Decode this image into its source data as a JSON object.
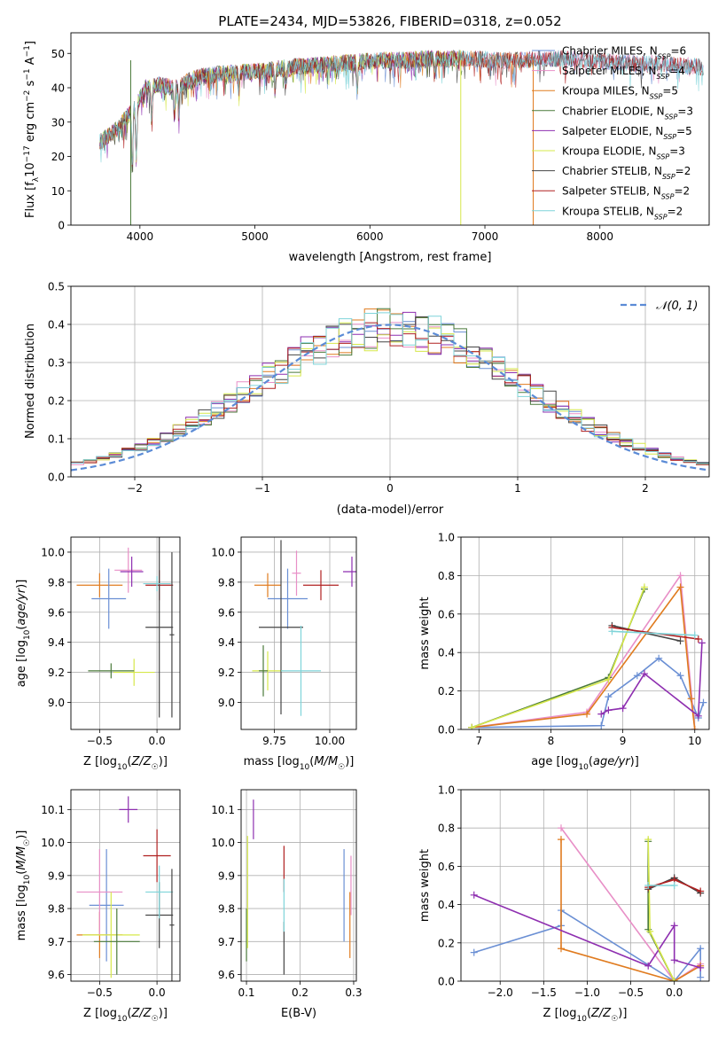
{
  "title": "PLATE=2434, MJD=53826, FIBERID=0318, z=0.052",
  "colors": {
    "chabrier_miles": "#6a8fd4",
    "salpeter_miles": "#e88fc7",
    "kroupa_miles": "#e07b1f",
    "chabrier_elodie": "#4a7a3a",
    "salpeter_elodie": "#8e2fb0",
    "kroupa_elodie": "#d6e84a",
    "chabrier_stelib": "#454545",
    "salpeter_stelib": "#b02020",
    "kroupa_stelib": "#7fd4d9",
    "normal": "#5b8bd6"
  },
  "chart_data": [
    {
      "id": "spectrum",
      "type": "line",
      "xlabel": "wavelength [Angstrom, rest frame]",
      "ylabel": "Flux [f_λ 10^-17 erg cm^-2 s^-1 A^-1]",
      "xlim": [
        3400,
        8950
      ],
      "ylim": [
        0,
        56
      ],
      "xticks": [
        4000,
        5000,
        6000,
        7000,
        8000
      ],
      "yticks": [
        0,
        10,
        20,
        30,
        40,
        50
      ],
      "grid": false,
      "legend_position": "right",
      "legend": [
        {
          "key": "chabrier_miles",
          "text": "Chabrier MILES, N",
          "sub": "SSP",
          "val": "=6"
        },
        {
          "key": "salpeter_miles",
          "text": "Salpeter MILES, N",
          "sub": "SSP",
          "val": "=4"
        },
        {
          "key": "kroupa_miles",
          "text": "Kroupa MILES, N",
          "sub": "SSP",
          "val": "=5"
        },
        {
          "key": "chabrier_elodie",
          "text": "Chabrier ELODIE, N",
          "sub": "SSP",
          "val": "=3"
        },
        {
          "key": "salpeter_elodie",
          "text": "Salpeter ELODIE, N",
          "sub": "SSP",
          "val": "=5"
        },
        {
          "key": "kroupa_elodie",
          "text": "Kroupa ELODIE, N",
          "sub": "SSP",
          "val": "=3"
        },
        {
          "key": "chabrier_stelib",
          "text": "Chabrier STELIB, N",
          "sub": "SSP",
          "val": "=2"
        },
        {
          "key": "salpeter_stelib",
          "text": "Salpeter STELIB, N",
          "sub": "SSP",
          "val": "=2"
        },
        {
          "key": "kroupa_stelib",
          "text": "Kroupa STELIB, N",
          "sub": "SSP",
          "val": "=2"
        }
      ],
      "continuum": [
        [
          3650,
          24
        ],
        [
          3800,
          28
        ],
        [
          3950,
          34
        ],
        [
          4050,
          40
        ],
        [
          4150,
          41
        ],
        [
          4300,
          40
        ],
        [
          4500,
          43
        ],
        [
          4700,
          44
        ],
        [
          4900,
          44.5
        ],
        [
          5100,
          45
        ],
        [
          5300,
          46
        ],
        [
          5500,
          46.5
        ],
        [
          5700,
          47
        ],
        [
          5900,
          47.5
        ],
        [
          6100,
          48
        ],
        [
          6300,
          48
        ],
        [
          6500,
          48.5
        ],
        [
          6700,
          48.5
        ],
        [
          6900,
          48.5
        ],
        [
          7100,
          48
        ],
        [
          7300,
          48
        ],
        [
          7500,
          48.5
        ],
        [
          7700,
          48.5
        ],
        [
          7900,
          48
        ],
        [
          8100,
          47.5
        ],
        [
          8300,
          47
        ],
        [
          8500,
          47
        ],
        [
          8700,
          46.5
        ],
        [
          8900,
          46
        ]
      ],
      "absorption": [
        [
          3934,
          17
        ],
        [
          3969,
          16
        ],
        [
          4102,
          10
        ],
        [
          4300,
          9
        ],
        [
          4340,
          8
        ],
        [
          4861,
          5
        ],
        [
          5175,
          6
        ],
        [
          5270,
          4
        ],
        [
          5890,
          9
        ],
        [
          6563,
          4
        ]
      ],
      "drops": [
        {
          "key": "chabrier_elodie",
          "x": 3920
        },
        {
          "key": "kroupa_elodie",
          "x": 6790
        },
        {
          "key": "kroupa_miles",
          "x": 7420
        }
      ]
    },
    {
      "id": "residuals",
      "type": "histogram",
      "xlabel": "(data-model)/error",
      "ylabel": "Normed distribution",
      "xlim": [
        -2.5,
        2.5
      ],
      "ylim": [
        0,
        0.5
      ],
      "xticks": [
        -2,
        -1,
        0,
        1,
        2
      ],
      "yticks": [
        0.0,
        0.1,
        0.2,
        0.3,
        0.4,
        0.5
      ],
      "grid": true,
      "legend_position": "top-right",
      "normal_label": "𝒩(0, 1)",
      "bin_width": 0.1
    },
    {
      "id": "z_age",
      "type": "errorbar",
      "xlabel": "Z [log10(Z/Z☉)]",
      "ylabel": "age  [log10(age/yr)]",
      "xlim": [
        -0.75,
        0.2
      ],
      "ylim": [
        8.82,
        10.1
      ],
      "xticks": [
        -0.5,
        0.0
      ],
      "yticks": [
        9.0,
        9.2,
        9.4,
        9.6,
        9.8,
        10.0
      ],
      "grid": true,
      "points": [
        {
          "key": "kroupa_miles",
          "x": -0.5,
          "xerr": 0.2,
          "y": 9.78,
          "yerr": 0.08
        },
        {
          "key": "chabrier_miles",
          "x": -0.42,
          "xerr": 0.15,
          "y": 9.69,
          "yerr": 0.2
        },
        {
          "key": "salpeter_miles",
          "x": -0.25,
          "xerr": 0.12,
          "y": 9.88,
          "yerr": 0.15
        },
        {
          "key": "salpeter_elodie",
          "x": -0.22,
          "xerr": 0.1,
          "y": 9.87,
          "yerr": 0.1
        },
        {
          "key": "kroupa_elodie",
          "x": -0.2,
          "xerr": 0.18,
          "y": 9.2,
          "yerr": 0.09
        },
        {
          "key": "chabrier_elodie",
          "x": -0.4,
          "xerr": 0.2,
          "y": 9.21,
          "yerr": 0.05
        },
        {
          "key": "salpeter_stelib",
          "x": 0.02,
          "xerr": 0.12,
          "y": 9.78,
          "yerr": 0.1
        },
        {
          "key": "chabrier_stelib",
          "x": 0.02,
          "xerr": 0.12,
          "y": 9.5,
          "yerr": 0.6
        },
        {
          "key": "kroupa_stelib",
          "x": 0.0,
          "xerr": 0.12,
          "y": 9.79,
          "yerr": 0.05
        },
        {
          "key": "chabrier_stelib",
          "x": 0.13,
          "xerr": 0.02,
          "y": 9.45,
          "yerr": 0.55
        }
      ]
    },
    {
      "id": "mass_age",
      "type": "errorbar",
      "xlabel": "mass [log10(M/M☉)]",
      "ylabel": "",
      "xlim": [
        9.6,
        10.12
      ],
      "ylim": [
        8.82,
        10.1
      ],
      "xticks": [
        9.75,
        10.0
      ],
      "yticks": [
        9.0,
        9.2,
        9.4,
        9.6,
        9.8,
        10.0
      ],
      "grid": true,
      "points": [
        {
          "key": "kroupa_miles",
          "x": 9.72,
          "xerr": 0.06,
          "y": 9.78,
          "yerr": 0.08
        },
        {
          "key": "chabrier_miles",
          "x": 9.81,
          "xerr": 0.09,
          "y": 9.69,
          "yerr": 0.2
        },
        {
          "key": "salpeter_miles",
          "x": 9.85,
          "xerr": 0.02,
          "y": 9.86,
          "yerr": 0.15
        },
        {
          "key": "salpeter_elodie",
          "x": 10.1,
          "xerr": 0.04,
          "y": 9.87,
          "yerr": 0.1
        },
        {
          "key": "kroupa_elodie",
          "x": 9.72,
          "xerr": 0.07,
          "y": 9.21,
          "yerr": 0.13
        },
        {
          "key": "chabrier_elodie",
          "x": 9.7,
          "xerr": 0.02,
          "y": 9.21,
          "yerr": 0.17
        },
        {
          "key": "salpeter_stelib",
          "x": 9.96,
          "xerr": 0.08,
          "y": 9.78,
          "yerr": 0.1
        },
        {
          "key": "chabrier_stelib",
          "x": 9.78,
          "xerr": 0.1,
          "y": 9.5,
          "yerr": 0.58
        },
        {
          "key": "kroupa_stelib",
          "x": 9.87,
          "xerr": 0.09,
          "y": 9.21,
          "yerr": 0.3
        }
      ]
    },
    {
      "id": "age_weight",
      "type": "line",
      "xlabel": "age  [log10(age/yr)]",
      "ylabel": "mass weight",
      "xlim": [
        6.75,
        10.2
      ],
      "ylim": [
        0,
        1.0
      ],
      "xticks": [
        7,
        8,
        9,
        10
      ],
      "yticks": [
        0.0,
        0.2,
        0.4,
        0.6,
        0.8,
        1.0
      ],
      "grid": true,
      "series": [
        {
          "key": "chabrier_miles",
          "points": [
            [
              6.9,
              0.01
            ],
            [
              8.7,
              0.02
            ],
            [
              8.8,
              0.17
            ],
            [
              9.2,
              0.28
            ],
            [
              9.5,
              0.37
            ],
            [
              9.8,
              0.28
            ],
            [
              10.05,
              0.06
            ],
            [
              10.12,
              0.14
            ]
          ]
        },
        {
          "key": "salpeter_miles",
          "points": [
            [
              6.9,
              0.01
            ],
            [
              8.5,
              0.09
            ],
            [
              9.8,
              0.8
            ],
            [
              10.0,
              0.0
            ]
          ]
        },
        {
          "key": "kroupa_miles",
          "points": [
            [
              6.9,
              0.01
            ],
            [
              8.5,
              0.08
            ],
            [
              9.8,
              0.74
            ],
            [
              9.95,
              0.16
            ],
            [
              10.0,
              0.0
            ]
          ]
        },
        {
          "key": "chabrier_elodie",
          "points": [
            [
              6.9,
              0.01
            ],
            [
              8.8,
              0.27
            ],
            [
              9.3,
              0.73
            ]
          ]
        },
        {
          "key": "salpeter_elodie",
          "points": [
            [
              8.7,
              0.08
            ],
            [
              8.8,
              0.1
            ],
            [
              9.0,
              0.11
            ],
            [
              9.3,
              0.29
            ],
            [
              10.05,
              0.07
            ],
            [
              10.1,
              0.45
            ]
          ]
        },
        {
          "key": "kroupa_elodie",
          "points": [
            [
              6.9,
              0.01
            ],
            [
              8.8,
              0.26
            ],
            [
              9.3,
              0.74
            ]
          ]
        },
        {
          "key": "chabrier_stelib",
          "points": [
            [
              8.85,
              0.54
            ],
            [
              9.8,
              0.46
            ]
          ]
        },
        {
          "key": "salpeter_stelib",
          "points": [
            [
              8.85,
              0.53
            ],
            [
              10.05,
              0.47
            ]
          ]
        },
        {
          "key": "kroupa_stelib",
          "points": [
            [
              8.85,
              0.51
            ],
            [
              10.0,
              0.49
            ]
          ]
        }
      ]
    },
    {
      "id": "z_mass",
      "type": "errorbar",
      "xlabel": "Z [log10(Z/Z☉)]",
      "ylabel": "mass [log10(M/M☉)]",
      "xlim": [
        -0.75,
        0.2
      ],
      "ylim": [
        9.58,
        10.16
      ],
      "xticks": [
        -0.5,
        0.0
      ],
      "yticks": [
        9.6,
        9.7,
        9.8,
        9.9,
        10.0,
        10.1
      ],
      "grid": true,
      "points": [
        {
          "key": "kroupa_miles",
          "x": -0.5,
          "xerr": 0.2,
          "y": 9.72,
          "yerr": 0.07
        },
        {
          "key": "chabrier_miles",
          "x": -0.44,
          "xerr": 0.15,
          "y": 9.81,
          "yerr": 0.17
        },
        {
          "key": "salpeter_miles",
          "x": -0.5,
          "xerr": 0.2,
          "y": 9.85,
          "yerr": 0.13
        },
        {
          "key": "salpeter_elodie",
          "x": -0.25,
          "xerr": 0.08,
          "y": 10.1,
          "yerr": 0.04
        },
        {
          "key": "kroupa_elodie",
          "x": -0.4,
          "xerr": 0.25,
          "y": 9.72,
          "yerr": 0.13
        },
        {
          "key": "chabrier_elodie",
          "x": -0.35,
          "xerr": 0.2,
          "y": 9.7,
          "yerr": 0.1
        },
        {
          "key": "salpeter_stelib",
          "x": 0.0,
          "xerr": 0.12,
          "y": 9.96,
          "yerr": 0.08
        },
        {
          "key": "chabrier_stelib",
          "x": 0.02,
          "xerr": 0.12,
          "y": 9.78,
          "yerr": 0.1
        },
        {
          "key": "kroupa_stelib",
          "x": 0.02,
          "xerr": 0.12,
          "y": 9.85,
          "yerr": 0.08
        },
        {
          "key": "chabrier_stelib",
          "x": 0.13,
          "xerr": 0.02,
          "y": 9.75,
          "yerr": 0.17
        }
      ]
    },
    {
      "id": "ebv_mass",
      "type": "errorbar",
      "xlabel": "E(B-V)",
      "ylabel": "",
      "xlim": [
        0.09,
        0.305
      ],
      "ylim": [
        9.58,
        10.16
      ],
      "xticks": [
        0.1,
        0.2,
        0.3
      ],
      "yticks": [
        9.6,
        9.7,
        9.8,
        9.9,
        10.0,
        10.1
      ],
      "grid": true,
      "points": [
        {
          "key": "chabrier_elodie",
          "x": 0.1,
          "xerr": 0,
          "y": 9.72,
          "yerr": 0.08
        },
        {
          "key": "kroupa_elodie",
          "x": 0.102,
          "xerr": 0,
          "y": 9.85,
          "yerr": 0.17
        },
        {
          "key": "salpeter_elodie",
          "x": 0.113,
          "xerr": 0,
          "y": 10.07,
          "yerr": 0.06
        },
        {
          "key": "chabrier_stelib",
          "x": 0.17,
          "xerr": 0,
          "y": 9.68,
          "yerr": 0.08
        },
        {
          "key": "salpeter_stelib",
          "x": 0.17,
          "xerr": 0,
          "y": 9.92,
          "yerr": 0.07
        },
        {
          "key": "kroupa_stelib",
          "x": 0.17,
          "xerr": 0,
          "y": 9.81,
          "yerr": 0.08
        },
        {
          "key": "chabrier_miles",
          "x": 0.282,
          "xerr": 0,
          "y": 9.84,
          "yerr": 0.14
        },
        {
          "key": "kroupa_miles",
          "x": 0.293,
          "xerr": 0,
          "y": 9.75,
          "yerr": 0.1
        },
        {
          "key": "salpeter_miles",
          "x": 0.295,
          "xerr": 0,
          "y": 9.87,
          "yerr": 0.09
        }
      ]
    },
    {
      "id": "z_weight",
      "type": "line",
      "xlabel": "Z [log10(Z/Z☉)]",
      "ylabel": "mass weight",
      "xlim": [
        -2.45,
        0.4
      ],
      "ylim": [
        0,
        1.0
      ],
      "xticks": [
        -2.0,
        -1.5,
        -1.0,
        -0.5,
        0.0
      ],
      "yticks": [
        0.0,
        0.2,
        0.4,
        0.6,
        0.8,
        1.0
      ],
      "grid": true,
      "series": [
        {
          "key": "chabrier_miles",
          "points": [
            [
              -2.3,
              0.15
            ],
            [
              -1.3,
              0.29
            ],
            [
              -1.3,
              0.37
            ],
            [
              0.0,
              0.0
            ],
            [
              0.3,
              0.17
            ],
            [
              0.3,
              0.02
            ]
          ]
        },
        {
          "key": "salpeter_miles",
          "points": [
            [
              -1.3,
              0.8
            ],
            [
              0.0,
              0.0
            ],
            [
              0.3,
              0.09
            ]
          ]
        },
        {
          "key": "kroupa_miles",
          "points": [
            [
              -1.3,
              0.74
            ],
            [
              -1.3,
              0.17
            ],
            [
              0.0,
              0.0
            ],
            [
              0.3,
              0.08
            ]
          ]
        },
        {
          "key": "chabrier_elodie",
          "points": [
            [
              -0.3,
              0.73
            ],
            [
              -0.3,
              0.27
            ],
            [
              0.0,
              0.0
            ]
          ]
        },
        {
          "key": "salpeter_elodie",
          "points": [
            [
              -2.3,
              0.45
            ],
            [
              -0.3,
              0.08
            ],
            [
              0.0,
              0.29
            ],
            [
              0.0,
              0.11
            ],
            [
              0.3,
              0.07
            ]
          ]
        },
        {
          "key": "kroupa_elodie",
          "points": [
            [
              -0.3,
              0.74
            ],
            [
              -0.28,
              0.26
            ],
            [
              0.0,
              0.0
            ]
          ]
        },
        {
          "key": "chabrier_stelib",
          "points": [
            [
              -0.3,
              0.48
            ],
            [
              0.0,
              0.54
            ],
            [
              0.3,
              0.46
            ]
          ]
        },
        {
          "key": "salpeter_stelib",
          "points": [
            [
              -0.3,
              0.49
            ],
            [
              0.0,
              0.53
            ],
            [
              0.3,
              0.47
            ]
          ]
        },
        {
          "key": "kroupa_stelib",
          "points": [
            [
              -0.3,
              0.5
            ],
            [
              0.0,
              0.5
            ]
          ]
        }
      ]
    }
  ]
}
